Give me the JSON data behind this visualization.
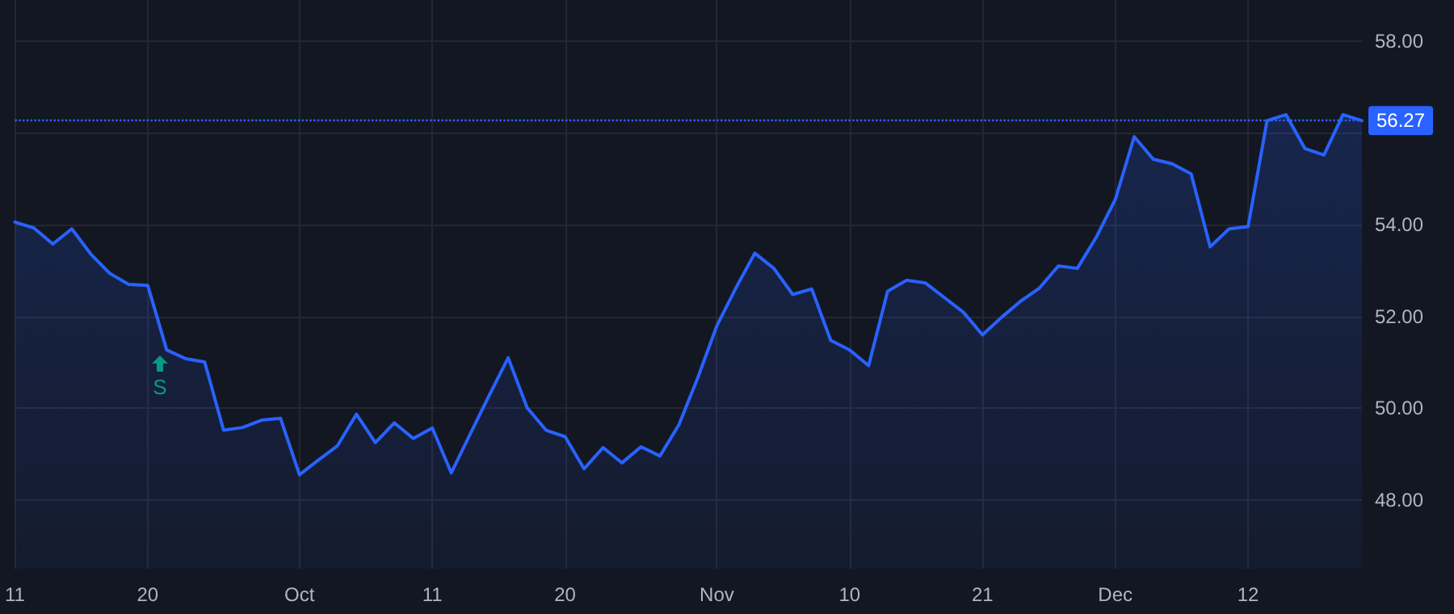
{
  "chart_data": {
    "type": "area",
    "categories": [
      "11",
      null,
      null,
      null,
      null,
      null,
      null,
      "20",
      null,
      null,
      null,
      null,
      null,
      null,
      null,
      "Oct",
      null,
      null,
      null,
      null,
      null,
      null,
      "11",
      null,
      null,
      null,
      null,
      null,
      null,
      "20",
      null,
      null,
      null,
      null,
      null,
      null,
      null,
      "Nov",
      null,
      null,
      null,
      null,
      null,
      null,
      "10",
      null,
      null,
      null,
      null,
      null,
      null,
      "21",
      null,
      null,
      null,
      null,
      null,
      null,
      "Dec",
      null,
      null,
      null,
      null,
      null,
      null,
      "12",
      null,
      null,
      null,
      null,
      null,
      null
    ],
    "series": [
      {
        "color": "#2962ff",
        "values": [
          54.06,
          53.93,
          53.58,
          53.91,
          53.36,
          52.94,
          52.7,
          52.68,
          51.27,
          51.08,
          51.01,
          49.52,
          49.58,
          49.74,
          49.78,
          48.55,
          48.87,
          49.18,
          49.87,
          49.25,
          49.68,
          49.34,
          49.57,
          48.59,
          49.44,
          50.28,
          51.1,
          50.01,
          49.52,
          49.38,
          48.68,
          49.14,
          48.81,
          49.16,
          48.96,
          49.64,
          50.67,
          51.8,
          52.62,
          53.38,
          53.05,
          52.48,
          52.6,
          51.48,
          51.27,
          50.93,
          52.55,
          52.79,
          52.73,
          52.41,
          52.09,
          51.6,
          51.98,
          52.33,
          52.62,
          53.1,
          53.05,
          53.73,
          54.55,
          55.92,
          55.43,
          55.33,
          55.11,
          53.52,
          53.91,
          53.96,
          56.27,
          56.4,
          55.66,
          55.52,
          56.4,
          56.27
        ]
      }
    ],
    "ylim": [
      46.5,
      58.9
    ],
    "yticks": [
      {
        "value": 48,
        "label": "48.00"
      },
      {
        "value": 50,
        "label": "50.00"
      },
      {
        "value": 52,
        "label": "52.00"
      },
      {
        "value": 54,
        "label": "54.00"
      },
      {
        "value": 56,
        "label": null
      },
      {
        "value": 58,
        "label": "58.00"
      }
    ],
    "ref_lines": [
      {
        "axis": "y",
        "value": 56.27,
        "label": "56.27",
        "color": "#2962ff",
        "line_style": "dotted"
      }
    ],
    "annotations": [
      "S"
    ],
    "grid": true,
    "marker": "none",
    "line_style": "solid"
  }
}
